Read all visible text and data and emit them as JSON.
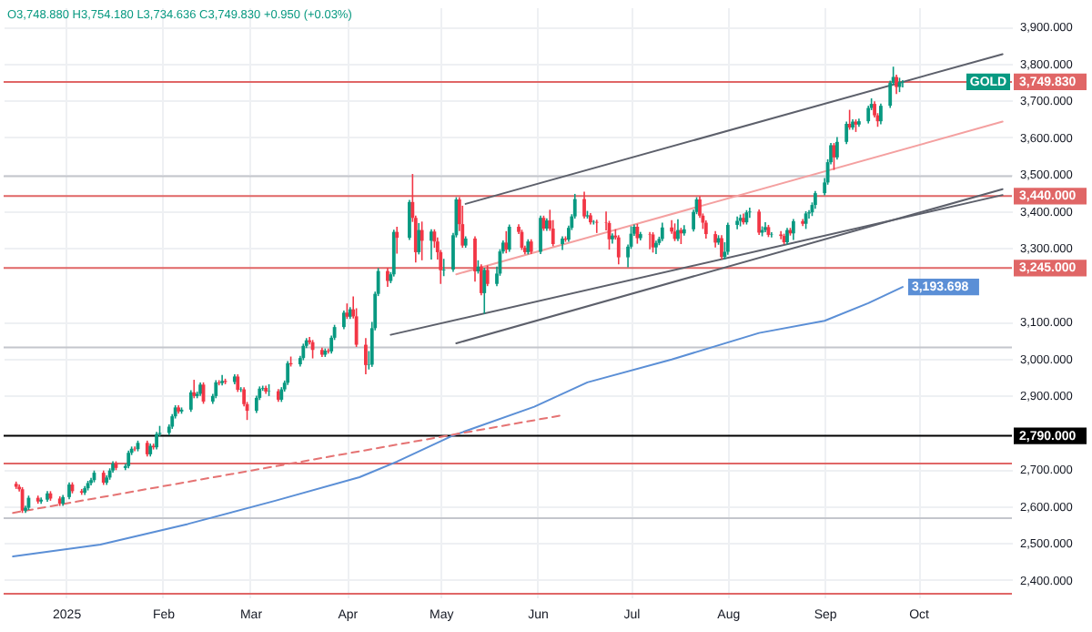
{
  "chart_data": {
    "type": "candlestick",
    "annotations": [
      "O3,748.880 H3,754.180 L3,734.636 C3,749.830 +0.950 (+0.03%)",
      {
        "text": "GOLD",
        "y": 3749.83
      }
    ],
    "x": [
      "2024-12-16",
      "2024-12-17",
      "2024-12-18",
      "2024-12-19",
      "2024-12-20",
      "2024-12-23",
      "2024-12-24",
      "2024-12-26",
      "2024-12-27",
      "2024-12-30",
      "2024-12-31",
      "2025-01-02",
      "2025-01-03",
      "2025-01-06",
      "2025-01-07",
      "2025-01-08",
      "2025-01-09",
      "2025-01-10",
      "2025-01-13",
      "2025-01-14",
      "2025-01-15",
      "2025-01-16",
      "2025-01-17",
      "2025-01-20",
      "2025-01-21",
      "2025-01-22",
      "2025-01-23",
      "2025-01-24",
      "2025-01-27",
      "2025-01-28",
      "2025-01-29",
      "2025-01-30",
      "2025-01-31",
      "2025-02-03",
      "2025-02-04",
      "2025-02-05",
      "2025-02-06",
      "2025-02-07",
      "2025-02-10",
      "2025-02-11",
      "2025-02-12",
      "2025-02-13",
      "2025-02-14",
      "2025-02-17",
      "2025-02-18",
      "2025-02-19",
      "2025-02-20",
      "2025-02-21",
      "2025-02-24",
      "2025-02-25",
      "2025-02-26",
      "2025-02-27",
      "2025-02-28",
      "2025-03-03",
      "2025-03-04",
      "2025-03-05",
      "2025-03-06",
      "2025-03-07",
      "2025-03-10",
      "2025-03-11",
      "2025-03-12",
      "2025-03-13",
      "2025-03-14",
      "2025-03-17",
      "2025-03-18",
      "2025-03-19",
      "2025-03-20",
      "2025-03-21",
      "2025-03-24",
      "2025-03-25",
      "2025-03-26",
      "2025-03-27",
      "2025-03-28",
      "2025-03-31",
      "2025-04-01",
      "2025-04-02",
      "2025-04-03",
      "2025-04-04",
      "2025-04-07",
      "2025-04-08",
      "2025-04-09",
      "2025-04-10",
      "2025-04-11",
      "2025-04-14",
      "2025-04-15",
      "2025-04-16",
      "2025-04-17",
      "2025-04-21",
      "2025-04-22",
      "2025-04-23",
      "2025-04-24",
      "2025-04-25",
      "2025-04-28",
      "2025-04-29",
      "2025-04-30",
      "2025-05-01",
      "2025-05-02",
      "2025-05-05",
      "2025-05-06",
      "2025-05-07",
      "2025-05-08",
      "2025-05-09",
      "2025-05-12",
      "2025-05-13",
      "2025-05-14",
      "2025-05-15",
      "2025-05-16",
      "2025-05-19",
      "2025-05-20",
      "2025-05-21",
      "2025-05-22",
      "2025-05-23",
      "2025-05-26",
      "2025-05-27",
      "2025-05-28",
      "2025-05-29",
      "2025-05-30",
      "2025-06-02",
      "2025-06-03",
      "2025-06-04",
      "2025-06-05",
      "2025-06-06",
      "2025-06-09",
      "2025-06-10",
      "2025-06-11",
      "2025-06-12",
      "2025-06-13",
      "2025-06-16",
      "2025-06-17",
      "2025-06-18",
      "2025-06-19",
      "2025-06-20",
      "2025-06-23",
      "2025-06-24",
      "2025-06-25",
      "2025-06-26",
      "2025-06-27",
      "2025-06-30",
      "2025-07-01",
      "2025-07-02",
      "2025-07-03",
      "2025-07-04",
      "2025-07-07",
      "2025-07-08",
      "2025-07-09",
      "2025-07-10",
      "2025-07-11",
      "2025-07-14",
      "2025-07-15",
      "2025-07-16",
      "2025-07-17",
      "2025-07-18",
      "2025-07-21",
      "2025-07-22",
      "2025-07-23",
      "2025-07-24",
      "2025-07-25",
      "2025-07-28",
      "2025-07-29",
      "2025-07-30",
      "2025-07-31",
      "2025-08-01",
      "2025-08-04",
      "2025-08-05",
      "2025-08-06",
      "2025-08-07",
      "2025-08-08",
      "2025-08-11",
      "2025-08-12",
      "2025-08-13",
      "2025-08-14",
      "2025-08-15",
      "2025-08-18",
      "2025-08-19",
      "2025-08-20",
      "2025-08-21",
      "2025-08-22",
      "2025-08-25",
      "2025-08-26",
      "2025-08-27",
      "2025-08-28",
      "2025-08-29",
      "2025-09-01",
      "2025-09-02",
      "2025-09-03",
      "2025-09-04",
      "2025-09-05",
      "2025-09-08",
      "2025-09-09",
      "2025-09-10",
      "2025-09-11",
      "2025-09-12",
      "2025-09-15",
      "2025-09-16",
      "2025-09-17",
      "2025-09-18",
      "2025-09-19",
      "2025-09-22",
      "2025-09-23",
      "2025-09-24",
      "2025-09-25",
      "2025-09-26"
    ],
    "ohlc": [
      [
        2660,
        2666,
        2646,
        2652
      ],
      [
        2652,
        2658,
        2639,
        2645
      ],
      [
        2645,
        2651,
        2581,
        2587
      ],
      [
        2587,
        2601,
        2581,
        2595
      ],
      [
        2595,
        2628,
        2589,
        2622
      ],
      [
        2622,
        2628,
        2606,
        2612
      ],
      [
        2612,
        2623,
        2606,
        2617
      ],
      [
        2617,
        2640,
        2611,
        2634
      ],
      [
        2634,
        2640,
        2614,
        2620
      ],
      [
        2620,
        2626,
        2600,
        2606
      ],
      [
        2606,
        2630,
        2600,
        2624
      ],
      [
        2624,
        2664,
        2618,
        2658
      ],
      [
        2658,
        2664,
        2634,
        2640
      ],
      [
        2640,
        2646,
        2630,
        2636
      ],
      [
        2636,
        2654,
        2630,
        2648
      ],
      [
        2648,
        2668,
        2642,
        2662
      ],
      [
        2662,
        2676,
        2656,
        2670
      ],
      [
        2670,
        2696,
        2664,
        2690
      ],
      [
        2690,
        2696,
        2657,
        2663
      ],
      [
        2663,
        2683,
        2657,
        2677
      ],
      [
        2677,
        2702,
        2671,
        2696
      ],
      [
        2696,
        2721,
        2690,
        2715
      ],
      [
        2715,
        2721,
        2697,
        2703
      ],
      [
        2703,
        2714,
        2697,
        2708
      ],
      [
        2708,
        2750,
        2702,
        2744
      ],
      [
        2744,
        2761,
        2738,
        2755
      ],
      [
        2755,
        2761,
        2748,
        2754
      ],
      [
        2754,
        2777,
        2748,
        2771
      ],
      [
        2771,
        2777,
        2734,
        2740
      ],
      [
        2740,
        2769,
        2734,
        2763
      ],
      [
        2763,
        2769,
        2753,
        2759
      ],
      [
        2759,
        2801,
        2753,
        2795
      ],
      [
        2795,
        2817,
        2789,
        2798
      ],
      [
        2798,
        2821,
        2792,
        2815
      ],
      [
        2815,
        2849,
        2809,
        2843
      ],
      [
        2843,
        2873,
        2837,
        2867
      ],
      [
        2867,
        2873,
        2850,
        2856
      ],
      [
        2856,
        2867,
        2850,
        2861
      ],
      [
        2861,
        2914,
        2855,
        2908
      ],
      [
        2908,
        2942,
        2892,
        2898
      ],
      [
        2898,
        2910,
        2892,
        2904
      ],
      [
        2904,
        2935,
        2898,
        2929
      ],
      [
        2929,
        2935,
        2877,
        2883
      ],
      [
        2883,
        2904,
        2877,
        2898
      ],
      [
        2898,
        2941,
        2892,
        2935
      ],
      [
        2935,
        2941,
        2927,
        2933
      ],
      [
        2933,
        2955,
        2927,
        2939
      ],
      [
        2939,
        2945,
        2930,
        2936
      ],
      [
        2936,
        2957,
        2930,
        2951
      ],
      [
        2951,
        2957,
        2909,
        2915
      ],
      [
        2915,
        2922,
        2909,
        2916
      ],
      [
        2916,
        2922,
        2870,
        2876
      ],
      [
        2876,
        2882,
        2833,
        2858
      ],
      [
        2858,
        2899,
        2852,
        2893
      ],
      [
        2893,
        2924,
        2887,
        2918
      ],
      [
        2918,
        2926,
        2912,
        2920
      ],
      [
        2920,
        2926,
        2904,
        2910
      ],
      [
        2910,
        2930,
        2898,
        2911
      ],
      [
        2911,
        2917,
        2882,
        2888
      ],
      [
        2888,
        2922,
        2882,
        2916
      ],
      [
        2916,
        2940,
        2910,
        2934
      ],
      [
        2934,
        2993,
        2928,
        2987
      ],
      [
        2987,
        3005,
        2978,
        2984
      ],
      [
        2984,
        3007,
        2978,
        3001
      ],
      [
        3001,
        3040,
        2995,
        3034
      ],
      [
        3034,
        3055,
        3028,
        3049
      ],
      [
        3049,
        3058,
        3038,
        3044
      ],
      [
        3044,
        3050,
        3000,
        3023
      ],
      [
        3023,
        3029,
        3004,
        3010
      ],
      [
        3010,
        3027,
        3004,
        3021
      ],
      [
        3021,
        3027,
        3013,
        3019
      ],
      [
        3019,
        3062,
        3013,
        3056
      ],
      [
        3056,
        3091,
        3050,
        3085
      ],
      [
        3085,
        3130,
        3079,
        3124
      ],
      [
        3124,
        3149,
        3107,
        3113
      ],
      [
        3113,
        3139,
        3107,
        3133
      ],
      [
        3133,
        3168,
        3108,
        3114
      ],
      [
        3114,
        3136,
        3031,
        3037
      ],
      [
        3037,
        3055,
        2957,
        2982
      ],
      [
        2982,
        3020,
        2970,
        2983
      ],
      [
        2983,
        3099,
        2977,
        3082
      ],
      [
        3082,
        3181,
        3076,
        3175
      ],
      [
        3175,
        3245,
        3169,
        3237
      ],
      [
        3237,
        3245,
        3194,
        3210
      ],
      [
        3210,
        3234,
        3204,
        3228
      ],
      [
        3228,
        3349,
        3222,
        3343
      ],
      [
        3343,
        3357,
        3284,
        3327
      ],
      [
        3327,
        3430,
        3321,
        3424
      ],
      [
        3424,
        3500,
        3370,
        3381
      ],
      [
        3381,
        3387,
        3260,
        3288
      ],
      [
        3288,
        3367,
        3282,
        3348
      ],
      [
        3348,
        3371,
        3266,
        3319
      ],
      [
        3319,
        3350,
        3268,
        3344
      ],
      [
        3344,
        3350,
        3300,
        3317
      ],
      [
        3317,
        3328,
        3268,
        3288
      ],
      [
        3288,
        3294,
        3202,
        3239
      ],
      [
        3239,
        3270,
        3223,
        3241
      ],
      [
        3241,
        3340,
        3235,
        3334
      ],
      [
        3334,
        3437,
        3328,
        3431
      ],
      [
        3431,
        3437,
        3345,
        3364
      ],
      [
        3364,
        3414,
        3300,
        3306
      ],
      [
        3306,
        3331,
        3300,
        3325
      ],
      [
        3325,
        3331,
        3208,
        3236
      ],
      [
        3236,
        3266,
        3230,
        3249
      ],
      [
        3249,
        3255,
        3171,
        3177
      ],
      [
        3177,
        3246,
        3121,
        3240
      ],
      [
        3240,
        3252,
        3196,
        3202
      ],
      [
        3202,
        3249,
        3196,
        3230
      ],
      [
        3230,
        3296,
        3224,
        3290
      ],
      [
        3290,
        3320,
        3284,
        3314
      ],
      [
        3314,
        3345,
        3285,
        3295
      ],
      [
        3295,
        3363,
        3289,
        3357
      ],
      [
        3357,
        3364,
        3337,
        3343
      ],
      [
        3343,
        3349,
        3294,
        3300
      ],
      [
        3300,
        3306,
        3282,
        3288
      ],
      [
        3288,
        3323,
        3282,
        3317
      ],
      [
        3317,
        3323,
        3283,
        3289
      ],
      [
        3289,
        3387,
        3283,
        3381
      ],
      [
        3381,
        3387,
        3346,
        3352
      ],
      [
        3352,
        3380,
        3346,
        3374
      ],
      [
        3374,
        3403,
        3346,
        3352
      ],
      [
        3352,
        3375,
        3304,
        3310
      ],
      [
        3310,
        3331,
        3294,
        3325
      ],
      [
        3325,
        3331,
        3316,
        3322
      ],
      [
        3322,
        3360,
        3316,
        3354
      ],
      [
        3354,
        3391,
        3348,
        3385
      ],
      [
        3385,
        3446,
        3379,
        3432
      ],
      [
        3432,
        3452,
        3379,
        3385
      ],
      [
        3385,
        3400,
        3379,
        3388
      ],
      [
        3388,
        3394,
        3363,
        3369
      ],
      [
        3369,
        3375,
        3363,
        3370
      ],
      [
        3370,
        3376,
        3340,
        3368
      ],
      [
        3368,
        3398,
        3347,
        3367
      ],
      [
        3367,
        3373,
        3295,
        3323
      ],
      [
        3323,
        3339,
        3311,
        3333
      ],
      [
        3333,
        3350,
        3322,
        3328
      ],
      [
        3328,
        3334,
        3255,
        3274
      ],
      [
        3274,
        3309,
        3247,
        3303
      ],
      [
        3303,
        3358,
        3297,
        3338
      ],
      [
        3338,
        3363,
        3332,
        3357
      ],
      [
        3357,
        3365,
        3311,
        3326
      ],
      [
        3326,
        3343,
        3320,
        3337
      ],
      [
        3337,
        3343,
        3296,
        3336
      ],
      [
        3336,
        3342,
        3287,
        3301
      ],
      [
        3301,
        3319,
        3283,
        3313
      ],
      [
        3313,
        3330,
        3307,
        3324
      ],
      [
        3324,
        3368,
        3318,
        3355
      ],
      [
        3355,
        3375,
        3338,
        3344
      ],
      [
        3344,
        3366,
        3318,
        3324
      ],
      [
        3324,
        3377,
        3318,
        3348
      ],
      [
        3348,
        3354,
        3310,
        3339
      ],
      [
        3339,
        3361,
        3333,
        3350
      ],
      [
        3350,
        3403,
        3344,
        3397
      ],
      [
        3397,
        3437,
        3391,
        3431
      ],
      [
        3431,
        3439,
        3381,
        3387
      ],
      [
        3387,
        3393,
        3351,
        3368
      ],
      [
        3368,
        3374,
        3325,
        3337
      ],
      [
        3337,
        3345,
        3301,
        3314
      ],
      [
        3314,
        3334,
        3308,
        3326
      ],
      [
        3326,
        3334,
        3268,
        3275
      ],
      [
        3275,
        3315,
        3269,
        3289
      ],
      [
        3289,
        3368,
        3281,
        3362
      ],
      [
        3362,
        3385,
        3350,
        3373
      ],
      [
        3373,
        3390,
        3358,
        3381
      ],
      [
        3381,
        3393,
        3363,
        3369
      ],
      [
        3369,
        3402,
        3363,
        3396
      ],
      [
        3396,
        3409,
        3381,
        3398
      ],
      [
        3398,
        3404,
        3335,
        3341
      ],
      [
        3341,
        3358,
        3331,
        3348
      ],
      [
        3348,
        3369,
        3342,
        3356
      ],
      [
        3356,
        3362,
        3329,
        3335
      ],
      [
        3335,
        3342,
        3328,
        3336
      ],
      [
        3336,
        3345,
        3323,
        3332
      ],
      [
        3332,
        3338,
        3310,
        3315
      ],
      [
        3315,
        3354,
        3309,
        3348
      ],
      [
        3348,
        3354,
        3333,
        3339
      ],
      [
        3339,
        3378,
        3321,
        3372
      ],
      [
        3372,
        3378,
        3359,
        3365
      ],
      [
        3365,
        3399,
        3351,
        3393
      ],
      [
        3393,
        3402,
        3379,
        3396
      ],
      [
        3396,
        3423,
        3386,
        3416
      ],
      [
        3416,
        3454,
        3406,
        3448
      ],
      [
        3448,
        3489,
        3442,
        3477
      ],
      [
        3477,
        3540,
        3471,
        3532
      ],
      [
        3532,
        3584,
        3526,
        3578
      ],
      [
        3578,
        3584,
        3511,
        3545
      ],
      [
        3545,
        3600,
        3539,
        3587
      ],
      [
        3587,
        3642,
        3581,
        3636
      ],
      [
        3636,
        3674,
        3620,
        3626
      ],
      [
        3626,
        3648,
        3620,
        3642
      ],
      [
        3642,
        3648,
        3614,
        3634
      ],
      [
        3634,
        3650,
        3628,
        3643
      ],
      [
        3643,
        3685,
        3637,
        3679
      ],
      [
        3679,
        3705,
        3673,
        3690
      ],
      [
        3690,
        3697,
        3653,
        3659
      ],
      [
        3659,
        3665,
        3628,
        3643
      ],
      [
        3643,
        3691,
        3635,
        3685
      ],
      [
        3685,
        3753,
        3679,
        3747
      ],
      [
        3747,
        3791,
        3741,
        3763
      ],
      [
        3763,
        3769,
        3717,
        3736
      ],
      [
        3736,
        3761,
        3722,
        3748.88
      ],
      [
        3748.88,
        3754.18,
        3734.636,
        3749.83
      ]
    ],
    "colors": [
      "#f23645",
      "#f23645",
      "#f23645",
      "#089981",
      "#089981",
      "#f23645",
      "#089981",
      "#089981",
      "#f23645",
      "#f23645",
      "#089981",
      "#089981",
      "#f23645",
      "#f23645",
      "#089981",
      "#089981",
      "#089981",
      "#089981",
      "#f23645",
      "#089981",
      "#089981",
      "#089981",
      "#f23645",
      "#089981",
      "#089981",
      "#089981",
      "#f23645",
      "#089981",
      "#f23645",
      "#089981",
      "#f23645",
      "#089981",
      "#089981",
      "#089981",
      "#089981",
      "#089981",
      "#f23645",
      "#089981",
      "#089981",
      "#f23645",
      "#089981",
      "#089981",
      "#f23645",
      "#089981",
      "#089981",
      "#f23645",
      "#089981",
      "#f23645",
      "#089981",
      "#f23645",
      "#089981",
      "#f23645",
      "#f23645",
      "#089981",
      "#089981",
      "#089981",
      "#f23645",
      "#089981",
      "#f23645",
      "#089981",
      "#089981",
      "#089981",
      "#f23645",
      "#089981",
      "#089981",
      "#089981",
      "#f23645",
      "#f23645",
      "#f23645",
      "#089981",
      "#f23645",
      "#089981",
      "#089981",
      "#089981",
      "#f23645",
      "#089981",
      "#f23645",
      "#f23645",
      "#f23645",
      "#089981",
      "#089981",
      "#089981",
      "#089981",
      "#f23645",
      "#089981",
      "#089981",
      "#f23645",
      "#089981",
      "#f23645",
      "#f23645",
      "#089981",
      "#f23645",
      "#089981",
      "#f23645",
      "#f23645",
      "#f23645",
      "#089981",
      "#089981",
      "#089981",
      "#f23645",
      "#f23645",
      "#089981",
      "#f23645",
      "#089981",
      "#f23645",
      "#089981",
      "#f23645",
      "#089981",
      "#089981",
      "#089981",
      "#f23645",
      "#089981",
      "#f23645",
      "#f23645",
      "#f23645",
      "#089981",
      "#f23645",
      "#089981",
      "#f23645",
      "#089981",
      "#f23645",
      "#f23645",
      "#089981",
      "#f23645",
      "#089981",
      "#089981",
      "#089981",
      "#f23645",
      "#089981",
      "#f23645",
      "#089981",
      "#f23645",
      "#f23645",
      "#f23645",
      "#089981",
      "#f23645",
      "#f23645",
      "#089981",
      "#089981",
      "#089981",
      "#f23645",
      "#089981",
      "#f23645",
      "#f23645",
      "#089981",
      "#089981",
      "#089981",
      "#f23645",
      "#f23645",
      "#089981",
      "#f23645",
      "#089981",
      "#089981",
      "#089981",
      "#f23645",
      "#f23645",
      "#f23645",
      "#f23645",
      "#089981",
      "#f23645",
      "#089981",
      "#089981",
      "#089981",
      "#089981",
      "#f23645",
      "#089981",
      "#089981",
      "#f23645",
      "#089981",
      "#089981",
      "#f23645",
      "#089981",
      "#f23645",
      "#f23645",
      "#089981",
      "#f23645",
      "#089981",
      "#f23645",
      "#089981",
      "#089981",
      "#089981",
      "#089981",
      "#089981",
      "#089981",
      "#089981",
      "#f23645",
      "#089981",
      "#089981",
      "#f23645",
      "#089981",
      "#f23645",
      "#089981",
      "#089981",
      "#089981",
      "#f23645",
      "#f23645",
      "#089981",
      "#089981",
      "#089981",
      "#f23645",
      "#089981",
      "#089981"
    ],
    "series": [
      {
        "type": "line",
        "color": "#5b8fd6",
        "x": [
          "2024-12-15",
          "2025-01-12",
          "2025-02-09",
          "2025-03-09",
          "2025-04-05",
          "2025-04-17",
          "2025-05-05",
          "2025-05-31",
          "2025-06-17",
          "2025-07-14",
          "2025-08-11",
          "2025-09-01",
          "2025-09-15",
          "2025-09-26"
        ],
        "values": [
          2463,
          2495,
          2551,
          2614,
          2678,
          2720,
          2791,
          2869,
          2935,
          2997,
          3069,
          3102,
          3150,
          3193.698
        ],
        "value_labels": [
          null,
          null,
          null,
          null,
          null,
          null,
          null,
          null,
          null,
          null,
          null,
          null,
          null,
          "3,193.698"
        ]
      },
      {
        "type": "line",
        "color": "#5d606b",
        "x": [
          "2025-05-09",
          "2025-10-28"
        ],
        "values": [
          3419,
          3825
        ]
      },
      {
        "type": "line",
        "color": "#5d606b",
        "x": [
          "2025-04-15",
          "2025-10-28"
        ],
        "values": [
          3064,
          3443
        ]
      },
      {
        "type": "line",
        "color": "#5d606b",
        "x": [
          "2025-05-06",
          "2025-10-28"
        ],
        "values": [
          3041,
          3459
        ]
      },
      {
        "type": "line",
        "color": "#f4a0a0",
        "x": [
          "2025-05-06",
          "2025-10-28"
        ],
        "values": [
          3228,
          3642
        ]
      },
      {
        "type": "line",
        "color": "#e57373",
        "line_style": "dashed",
        "x": [
          "2024-12-15",
          "2025-06-09"
        ],
        "values": [
          2581,
          2846
        ]
      }
    ],
    "ref_lines": [
      {
        "axis": "y",
        "value": 3749.83,
        "label": "3,749.830",
        "color": "#e06666"
      },
      {
        "axis": "y",
        "value": 3494,
        "color": "#c4c6cc"
      },
      {
        "axis": "y",
        "value": 3440,
        "label": "3,440.000",
        "color": "#e06666"
      },
      {
        "axis": "y",
        "value": 3245,
        "label": "3,245.000",
        "color": "#e06666"
      },
      {
        "axis": "y",
        "value": 3030,
        "color": "#c4c6cc"
      },
      {
        "axis": "y",
        "value": 2790,
        "label": "2,790.000",
        "color": "#000000"
      },
      {
        "axis": "y",
        "value": 2715,
        "color": "#e06666"
      },
      {
        "axis": "y",
        "value": 2567,
        "color": "#c4c6cc"
      },
      {
        "axis": "y",
        "value": 2362,
        "color": "#e06666"
      }
    ],
    "xlim": [
      "2024-12-12",
      "2025-10-31"
    ],
    "xticks": [
      {
        "value": "2025-01-01",
        "label": "2025"
      },
      {
        "value": "2025-02-01",
        "label": "Feb"
      },
      {
        "value": "2025-03-01",
        "label": "Mar"
      },
      {
        "value": "2025-04-01",
        "label": "Apr"
      },
      {
        "value": "2025-05-01",
        "label": "May"
      },
      {
        "value": "2025-06-01",
        "label": "Jun"
      },
      {
        "value": "2025-07-01",
        "label": "Jul"
      },
      {
        "value": "2025-08-01",
        "label": "Aug"
      },
      {
        "value": "2025-09-01",
        "label": "Sep"
      },
      {
        "value": "2025-10-01",
        "label": "Oct"
      }
    ],
    "ylim": [
      2352,
      3952
    ],
    "yticks": [
      {
        "value": 2400,
        "label": "2,400.000"
      },
      {
        "value": 2500,
        "label": "2,500.000"
      },
      {
        "value": 2600,
        "label": "2,600.000"
      },
      {
        "value": 2700,
        "label": "2,700.000"
      },
      {
        "value": 2900,
        "label": "2,900.000"
      },
      {
        "value": 3000,
        "label": "3,000.000"
      },
      {
        "value": 3100,
        "label": "3,100.000"
      },
      {
        "value": 3300,
        "label": "3,300.000"
      },
      {
        "value": 3400,
        "label": "3,400.000"
      },
      {
        "value": 3500,
        "label": "3,500.000"
      },
      {
        "value": 3600,
        "label": "3,600.000"
      },
      {
        "value": 3700,
        "label": "3,700.000"
      },
      {
        "value": 3800,
        "label": "3,800.000"
      },
      {
        "value": 3900,
        "label": "3,900.000"
      }
    ],
    "grid": true
  }
}
